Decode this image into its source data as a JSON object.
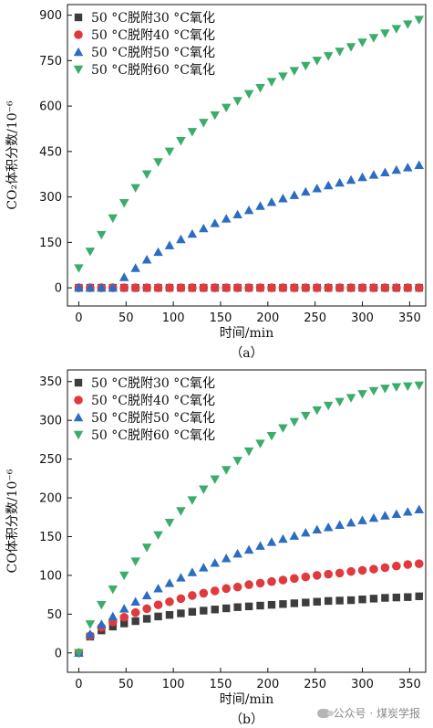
{
  "chart_data": [
    {
      "type": "scatter",
      "panel_label": "（a）",
      "xlabel": "时间/min",
      "ylabel": "CO₂体积分数/10⁻⁶",
      "xlim": [
        -12,
        367
      ],
      "ylim": [
        -60,
        935
      ],
      "xticks": [
        0,
        50,
        100,
        150,
        200,
        250,
        300,
        350
      ],
      "yticks": [
        0,
        150,
        300,
        450,
        600,
        750,
        900
      ],
      "legend_position": "top-left",
      "series": [
        {
          "name": "50 °C脱附30 °C氧化",
          "marker": "square",
          "color": "#3d3d3d",
          "x": [
            0,
            12,
            24,
            36,
            48,
            60,
            72,
            84,
            96,
            108,
            120,
            132,
            144,
            156,
            168,
            180,
            192,
            204,
            216,
            228,
            240,
            252,
            264,
            276,
            288,
            300,
            312,
            324,
            336,
            348,
            360
          ],
          "y": [
            0,
            0,
            0,
            0,
            0,
            0,
            0,
            0,
            0,
            0,
            0,
            0,
            0,
            0,
            0,
            0,
            0,
            0,
            0,
            0,
            0,
            0,
            0,
            0,
            0,
            0,
            0,
            0,
            0,
            0,
            0
          ]
        },
        {
          "name": "50 °C脱附40 °C氧化",
          "marker": "circle",
          "color": "#e03a3e",
          "x": [
            0,
            12,
            24,
            36,
            48,
            60,
            72,
            84,
            96,
            108,
            120,
            132,
            144,
            156,
            168,
            180,
            192,
            204,
            216,
            228,
            240,
            252,
            264,
            276,
            288,
            300,
            312,
            324,
            336,
            348,
            360
          ],
          "y": [
            0,
            0,
            0,
            0,
            0,
            0,
            0,
            0,
            0,
            0,
            0,
            0,
            0,
            0,
            0,
            0,
            0,
            0,
            0,
            0,
            0,
            0,
            0,
            0,
            0,
            0,
            0,
            0,
            0,
            0,
            0
          ]
        },
        {
          "name": "50 °C脱附50 °C氧化",
          "marker": "triangle-up",
          "color": "#2b6cc4",
          "x": [
            0,
            12,
            24,
            36,
            48,
            60,
            72,
            84,
            96,
            108,
            120,
            132,
            144,
            156,
            168,
            180,
            192,
            204,
            216,
            228,
            240,
            252,
            264,
            276,
            288,
            300,
            312,
            324,
            336,
            348,
            360
          ],
          "y": [
            0,
            0,
            0,
            0,
            35,
            65,
            93,
            118,
            140,
            160,
            178,
            196,
            213,
            228,
            242,
            256,
            270,
            283,
            295,
            306,
            317,
            328,
            338,
            347,
            356,
            365,
            373,
            381,
            389,
            397,
            405
          ]
        },
        {
          "name": "50 °C脱附60 °C氧化",
          "marker": "triangle-down",
          "color": "#3aad6a",
          "x": [
            0,
            12,
            24,
            36,
            48,
            60,
            72,
            84,
            96,
            108,
            120,
            132,
            144,
            156,
            168,
            180,
            192,
            204,
            216,
            228,
            240,
            252,
            264,
            276,
            288,
            300,
            312,
            324,
            336,
            348,
            360
          ],
          "y": [
            65,
            120,
            175,
            230,
            280,
            330,
            375,
            415,
            450,
            485,
            515,
            545,
            570,
            595,
            617,
            640,
            660,
            680,
            698,
            716,
            733,
            750,
            765,
            780,
            795,
            810,
            825,
            840,
            855,
            870,
            885
          ]
        }
      ]
    },
    {
      "type": "scatter",
      "panel_label": "（b）",
      "xlabel": "时间/min",
      "ylabel": "CO体积分数/10⁻⁶",
      "xlim": [
        -12,
        367
      ],
      "ylim": [
        -25,
        365
      ],
      "xticks": [
        0,
        50,
        100,
        150,
        200,
        250,
        300,
        350
      ],
      "yticks": [
        0,
        50,
        100,
        150,
        200,
        250,
        300,
        350
      ],
      "legend_position": "top-left",
      "series": [
        {
          "name": "50 °C脱附30 °C氧化",
          "marker": "square",
          "color": "#3d3d3d",
          "x": [
            0,
            12,
            24,
            36,
            48,
            60,
            72,
            84,
            96,
            108,
            120,
            132,
            144,
            156,
            168,
            180,
            192,
            204,
            216,
            228,
            240,
            252,
            264,
            276,
            288,
            300,
            312,
            324,
            336,
            348,
            360
          ],
          "y": [
            0,
            21,
            29,
            34,
            38,
            41,
            44,
            47,
            49,
            51,
            53,
            54.5,
            56,
            57.5,
            59,
            60,
            61,
            62,
            63,
            64,
            65,
            66,
            67,
            67.5,
            68,
            69,
            70,
            71,
            71.5,
            72,
            73
          ]
        },
        {
          "name": "50 °C脱附40 °C氧化",
          "marker": "circle",
          "color": "#e03a3e",
          "x": [
            0,
            12,
            24,
            36,
            48,
            60,
            72,
            84,
            96,
            108,
            120,
            132,
            144,
            156,
            168,
            180,
            192,
            204,
            216,
            228,
            240,
            252,
            264,
            276,
            288,
            300,
            312,
            324,
            336,
            348,
            360
          ],
          "y": [
            0,
            22,
            33,
            40,
            46,
            52,
            57,
            62,
            66,
            70,
            74,
            77,
            80,
            83,
            85,
            88,
            90,
            92,
            94,
            96,
            98,
            100,
            101.5,
            103,
            105,
            106.5,
            108,
            110,
            112,
            114,
            115
          ]
        },
        {
          "name": "50 °C脱附50 °C氧化",
          "marker": "triangle-up",
          "color": "#2b6cc4",
          "x": [
            0,
            12,
            24,
            36,
            48,
            60,
            72,
            84,
            96,
            108,
            120,
            132,
            144,
            156,
            168,
            180,
            192,
            204,
            216,
            228,
            240,
            252,
            264,
            276,
            288,
            300,
            312,
            324,
            336,
            348,
            360
          ],
          "y": [
            0,
            24,
            37,
            47,
            57,
            66,
            74,
            83,
            90,
            97,
            104,
            110,
            116,
            122,
            128,
            133,
            138,
            143,
            147,
            151,
            155,
            159,
            162,
            165,
            168,
            171,
            174,
            177,
            179,
            182,
            185
          ]
        },
        {
          "name": "50 °C脱附60 °C氧化",
          "marker": "triangle-down",
          "color": "#3aad6a",
          "x": [
            0,
            12,
            24,
            36,
            48,
            60,
            72,
            84,
            96,
            108,
            120,
            132,
            144,
            156,
            168,
            180,
            192,
            204,
            216,
            228,
            240,
            252,
            264,
            276,
            288,
            300,
            312,
            324,
            336,
            348,
            360
          ],
          "y": [
            0,
            37,
            62,
            82,
            100,
            118,
            136,
            152,
            168,
            183,
            197,
            211,
            224,
            236,
            248,
            260,
            270,
            280,
            290,
            298,
            306,
            313,
            319,
            324,
            329,
            334,
            338,
            341,
            343,
            344,
            345
          ]
        }
      ]
    }
  ],
  "watermark": {
    "text": "公众号 · 煤炭学报"
  }
}
